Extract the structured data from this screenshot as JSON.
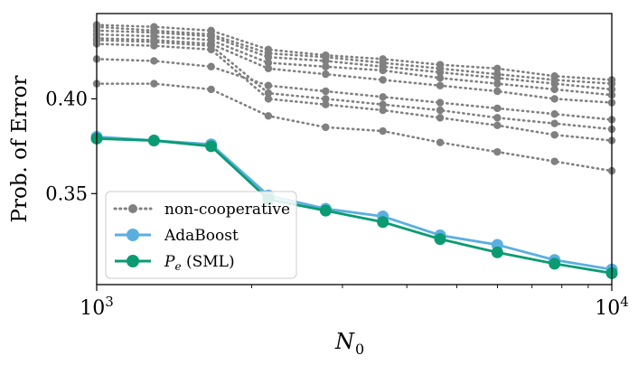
{
  "chart_data": {
    "type": "line",
    "title": "",
    "xlabel_main": "N",
    "xlabel_sub": "0",
    "ylabel": "Prob. of Error",
    "xscale": "log",
    "xlim": [
      1000,
      10000
    ],
    "ylim": [
      0.302,
      0.445
    ],
    "yticks": [
      {
        "value": 0.35,
        "label": "0.35"
      },
      {
        "value": 0.4,
        "label": "0.40"
      }
    ],
    "xticks": [
      {
        "value": 1000,
        "base": "10",
        "exp": "3"
      },
      {
        "value": 10000,
        "base": "10",
        "exp": "4"
      }
    ],
    "x": [
      1000,
      1292,
      1668,
      2154,
      2783,
      3594,
      4642,
      5995,
      7743,
      10000
    ],
    "legend": {
      "position": "lower-left",
      "entries": [
        {
          "label": "non-cooperative",
          "series": "noncoop"
        },
        {
          "label": "AdaBoost",
          "series": "adaboost"
        },
        {
          "label_main": "P",
          "label_sub": "e",
          "label_rest": " (SML)",
          "series": "sml"
        }
      ]
    },
    "noncooperative": {
      "color": "#808080",
      "series": [
        {
          "name": "non-cooperative 1",
          "values": [
            0.439,
            0.438,
            0.436,
            0.426,
            0.423,
            0.421,
            0.418,
            0.416,
            0.412,
            0.41
          ]
        },
        {
          "name": "non-cooperative 2",
          "values": [
            0.438,
            0.436,
            0.434,
            0.424,
            0.422,
            0.419,
            0.416,
            0.413,
            0.41,
            0.408
          ]
        },
        {
          "name": "non-cooperative 3",
          "values": [
            0.436,
            0.435,
            0.433,
            0.422,
            0.42,
            0.417,
            0.414,
            0.411,
            0.408,
            0.405
          ]
        },
        {
          "name": "non-cooperative 4",
          "values": [
            0.434,
            0.433,
            0.431,
            0.419,
            0.417,
            0.415,
            0.411,
            0.408,
            0.405,
            0.402
          ]
        },
        {
          "name": "non-cooperative 5",
          "values": [
            0.432,
            0.431,
            0.429,
            0.416,
            0.413,
            0.41,
            0.407,
            0.404,
            0.4,
            0.398
          ]
        },
        {
          "name": "non-cooperative 6",
          "values": [
            0.421,
            0.42,
            0.417,
            0.407,
            0.404,
            0.401,
            0.398,
            0.395,
            0.392,
            0.389
          ]
        },
        {
          "name": "non-cooperative 7",
          "values": [
            0.431,
            0.43,
            0.428,
            0.403,
            0.4,
            0.397,
            0.394,
            0.39,
            0.387,
            0.384
          ]
        },
        {
          "name": "non-cooperative 8",
          "values": [
            0.429,
            0.428,
            0.426,
            0.4,
            0.397,
            0.394,
            0.39,
            0.386,
            0.381,
            0.378
          ]
        },
        {
          "name": "non-cooperative 9",
          "values": [
            0.408,
            0.408,
            0.405,
            0.391,
            0.385,
            0.383,
            0.377,
            0.372,
            0.367,
            0.362
          ]
        }
      ]
    },
    "adaboost": {
      "name": "AdaBoost",
      "color": "#5aafe0",
      "values": [
        0.38,
        0.378,
        0.376,
        0.349,
        0.342,
        0.338,
        0.328,
        0.323,
        0.315,
        0.31
      ]
    },
    "sml": {
      "name": "P_e (SML)",
      "color": "#0a9b72",
      "values": [
        0.379,
        0.378,
        0.375,
        0.347,
        0.341,
        0.335,
        0.326,
        0.319,
        0.313,
        0.308
      ]
    }
  }
}
